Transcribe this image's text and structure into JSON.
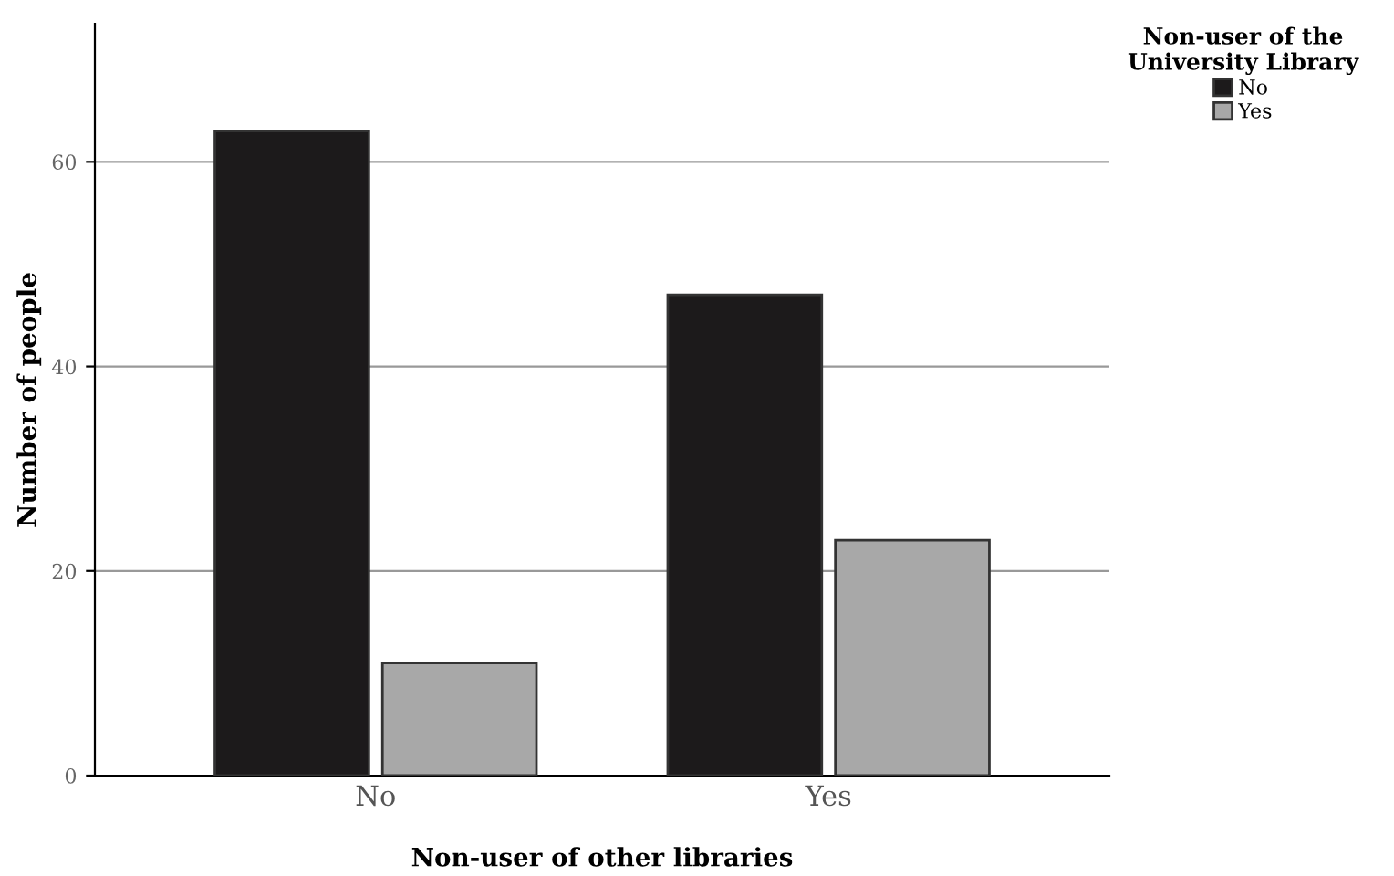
{
  "chart_data": {
    "type": "bar",
    "xlabel": "Non-user of other libraries",
    "ylabel": "Number of people",
    "legend_title": "Non-user of the\nUniversity Library",
    "categories": [
      "No",
      "Yes"
    ],
    "series": [
      {
        "name": "No",
        "color": "#1c1a1b",
        "values": [
          63,
          47
        ]
      },
      {
        "name": "Yes",
        "color": "#a8a8a8",
        "values": [
          11,
          23
        ]
      }
    ],
    "ylim": [
      0,
      73.5
    ],
    "yticks": [
      0,
      20,
      40,
      60
    ],
    "grid": "y",
    "legend": "top right"
  }
}
